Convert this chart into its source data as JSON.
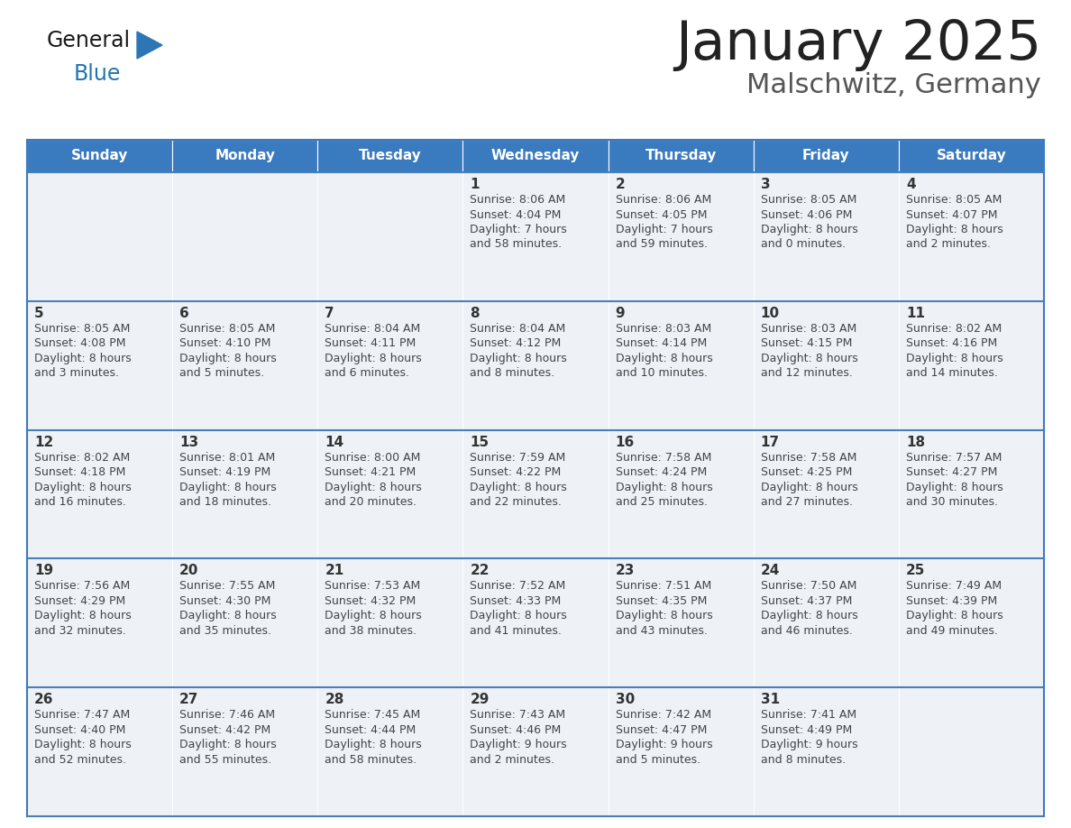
{
  "title": "January 2025",
  "subtitle": "Malschwitz, Germany",
  "header_bg_color": "#3a7abf",
  "header_text_color": "#ffffff",
  "cell_bg_color": "#eef2f7",
  "border_color": "#3a7abf",
  "row_divider_color": "#4a7fb5",
  "title_color": "#222222",
  "subtitle_color": "#555555",
  "day_number_color": "#333333",
  "info_color": "#444444",
  "days_of_week": [
    "Sunday",
    "Monday",
    "Tuesday",
    "Wednesday",
    "Thursday",
    "Friday",
    "Saturday"
  ],
  "weeks": [
    [
      {
        "day": "",
        "sunrise": "",
        "sunset": "",
        "daylight_l1": "",
        "daylight_l2": ""
      },
      {
        "day": "",
        "sunrise": "",
        "sunset": "",
        "daylight_l1": "",
        "daylight_l2": ""
      },
      {
        "day": "",
        "sunrise": "",
        "sunset": "",
        "daylight_l1": "",
        "daylight_l2": ""
      },
      {
        "day": "1",
        "sunrise": "8:06 AM",
        "sunset": "4:04 PM",
        "daylight_l1": "Daylight: 7 hours",
        "daylight_l2": "and 58 minutes."
      },
      {
        "day": "2",
        "sunrise": "8:06 AM",
        "sunset": "4:05 PM",
        "daylight_l1": "Daylight: 7 hours",
        "daylight_l2": "and 59 minutes."
      },
      {
        "day": "3",
        "sunrise": "8:05 AM",
        "sunset": "4:06 PM",
        "daylight_l1": "Daylight: 8 hours",
        "daylight_l2": "and 0 minutes."
      },
      {
        "day": "4",
        "sunrise": "8:05 AM",
        "sunset": "4:07 PM",
        "daylight_l1": "Daylight: 8 hours",
        "daylight_l2": "and 2 minutes."
      }
    ],
    [
      {
        "day": "5",
        "sunrise": "8:05 AM",
        "sunset": "4:08 PM",
        "daylight_l1": "Daylight: 8 hours",
        "daylight_l2": "and 3 minutes."
      },
      {
        "day": "6",
        "sunrise": "8:05 AM",
        "sunset": "4:10 PM",
        "daylight_l1": "Daylight: 8 hours",
        "daylight_l2": "and 5 minutes."
      },
      {
        "day": "7",
        "sunrise": "8:04 AM",
        "sunset": "4:11 PM",
        "daylight_l1": "Daylight: 8 hours",
        "daylight_l2": "and 6 minutes."
      },
      {
        "day": "8",
        "sunrise": "8:04 AM",
        "sunset": "4:12 PM",
        "daylight_l1": "Daylight: 8 hours",
        "daylight_l2": "and 8 minutes."
      },
      {
        "day": "9",
        "sunrise": "8:03 AM",
        "sunset": "4:14 PM",
        "daylight_l1": "Daylight: 8 hours",
        "daylight_l2": "and 10 minutes."
      },
      {
        "day": "10",
        "sunrise": "8:03 AM",
        "sunset": "4:15 PM",
        "daylight_l1": "Daylight: 8 hours",
        "daylight_l2": "and 12 minutes."
      },
      {
        "day": "11",
        "sunrise": "8:02 AM",
        "sunset": "4:16 PM",
        "daylight_l1": "Daylight: 8 hours",
        "daylight_l2": "and 14 minutes."
      }
    ],
    [
      {
        "day": "12",
        "sunrise": "8:02 AM",
        "sunset": "4:18 PM",
        "daylight_l1": "Daylight: 8 hours",
        "daylight_l2": "and 16 minutes."
      },
      {
        "day": "13",
        "sunrise": "8:01 AM",
        "sunset": "4:19 PM",
        "daylight_l1": "Daylight: 8 hours",
        "daylight_l2": "and 18 minutes."
      },
      {
        "day": "14",
        "sunrise": "8:00 AM",
        "sunset": "4:21 PM",
        "daylight_l1": "Daylight: 8 hours",
        "daylight_l2": "and 20 minutes."
      },
      {
        "day": "15",
        "sunrise": "7:59 AM",
        "sunset": "4:22 PM",
        "daylight_l1": "Daylight: 8 hours",
        "daylight_l2": "and 22 minutes."
      },
      {
        "day": "16",
        "sunrise": "7:58 AM",
        "sunset": "4:24 PM",
        "daylight_l1": "Daylight: 8 hours",
        "daylight_l2": "and 25 minutes."
      },
      {
        "day": "17",
        "sunrise": "7:58 AM",
        "sunset": "4:25 PM",
        "daylight_l1": "Daylight: 8 hours",
        "daylight_l2": "and 27 minutes."
      },
      {
        "day": "18",
        "sunrise": "7:57 AM",
        "sunset": "4:27 PM",
        "daylight_l1": "Daylight: 8 hours",
        "daylight_l2": "and 30 minutes."
      }
    ],
    [
      {
        "day": "19",
        "sunrise": "7:56 AM",
        "sunset": "4:29 PM",
        "daylight_l1": "Daylight: 8 hours",
        "daylight_l2": "and 32 minutes."
      },
      {
        "day": "20",
        "sunrise": "7:55 AM",
        "sunset": "4:30 PM",
        "daylight_l1": "Daylight: 8 hours",
        "daylight_l2": "and 35 minutes."
      },
      {
        "day": "21",
        "sunrise": "7:53 AM",
        "sunset": "4:32 PM",
        "daylight_l1": "Daylight: 8 hours",
        "daylight_l2": "and 38 minutes."
      },
      {
        "day": "22",
        "sunrise": "7:52 AM",
        "sunset": "4:33 PM",
        "daylight_l1": "Daylight: 8 hours",
        "daylight_l2": "and 41 minutes."
      },
      {
        "day": "23",
        "sunrise": "7:51 AM",
        "sunset": "4:35 PM",
        "daylight_l1": "Daylight: 8 hours",
        "daylight_l2": "and 43 minutes."
      },
      {
        "day": "24",
        "sunrise": "7:50 AM",
        "sunset": "4:37 PM",
        "daylight_l1": "Daylight: 8 hours",
        "daylight_l2": "and 46 minutes."
      },
      {
        "day": "25",
        "sunrise": "7:49 AM",
        "sunset": "4:39 PM",
        "daylight_l1": "Daylight: 8 hours",
        "daylight_l2": "and 49 minutes."
      }
    ],
    [
      {
        "day": "26",
        "sunrise": "7:47 AM",
        "sunset": "4:40 PM",
        "daylight_l1": "Daylight: 8 hours",
        "daylight_l2": "and 52 minutes."
      },
      {
        "day": "27",
        "sunrise": "7:46 AM",
        "sunset": "4:42 PM",
        "daylight_l1": "Daylight: 8 hours",
        "daylight_l2": "and 55 minutes."
      },
      {
        "day": "28",
        "sunrise": "7:45 AM",
        "sunset": "4:44 PM",
        "daylight_l1": "Daylight: 8 hours",
        "daylight_l2": "and 58 minutes."
      },
      {
        "day": "29",
        "sunrise": "7:43 AM",
        "sunset": "4:46 PM",
        "daylight_l1": "Daylight: 9 hours",
        "daylight_l2": "and 2 minutes."
      },
      {
        "day": "30",
        "sunrise": "7:42 AM",
        "sunset": "4:47 PM",
        "daylight_l1": "Daylight: 9 hours",
        "daylight_l2": "and 5 minutes."
      },
      {
        "day": "31",
        "sunrise": "7:41 AM",
        "sunset": "4:49 PM",
        "daylight_l1": "Daylight: 9 hours",
        "daylight_l2": "and 8 minutes."
      },
      {
        "day": "",
        "sunrise": "",
        "sunset": "",
        "daylight_l1": "",
        "daylight_l2": ""
      }
    ]
  ]
}
